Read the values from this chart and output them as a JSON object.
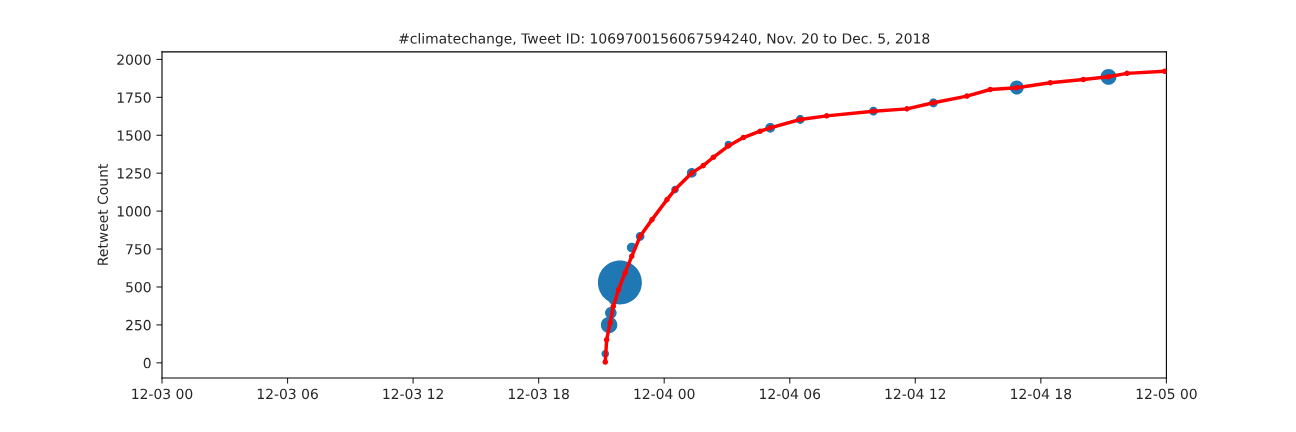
{
  "chart_data": {
    "type": "bubble",
    "title": "#climatechange, Tweet ID: 1069700156067594240, Nov. 20 to Dec. 5, 2018",
    "ylabel": "Retweet Count",
    "xlim": [
      "2018-12-03T00:00",
      "2018-12-05T00:00"
    ],
    "xticks": [
      {
        "value": "2018-12-03T00:00",
        "label": "12-03 00"
      },
      {
        "value": "2018-12-03T06:00",
        "label": "12-03 06"
      },
      {
        "value": "2018-12-03T12:00",
        "label": "12-03 12"
      },
      {
        "value": "2018-12-03T18:00",
        "label": "12-03 18"
      },
      {
        "value": "2018-12-04T00:00",
        "label": "12-04 00"
      },
      {
        "value": "2018-12-04T06:00",
        "label": "12-04 06"
      },
      {
        "value": "2018-12-04T12:00",
        "label": "12-04 12"
      },
      {
        "value": "2018-12-04T18:00",
        "label": "12-04 18"
      },
      {
        "value": "2018-12-05T00:00",
        "label": "12-05 00"
      }
    ],
    "ylim": [
      -100,
      2050
    ],
    "yticks": [
      0,
      250,
      500,
      750,
      1000,
      1250,
      1500,
      1750,
      2000
    ],
    "grid": false,
    "legend": false,
    "series": [
      {
        "color": "#1f77b4",
        "x": [
          "2018-12-03T21:11",
          "2018-12-03T21:22",
          "2018-12-03T21:27",
          "2018-12-03T21:35",
          "2018-12-03T21:53",
          "2018-12-03T22:27",
          "2018-12-03T22:51",
          "2018-12-04T00:31",
          "2018-12-04T01:19",
          "2018-12-04T03:04",
          "2018-12-04T05:04",
          "2018-12-04T06:30",
          "2018-12-04T10:00",
          "2018-12-04T12:52",
          "2018-12-04T16:51",
          "2018-12-04T21:14"
        ],
        "values": [
          60,
          250,
          330,
          420,
          530,
          760,
          834,
          1142,
          1252,
          1439,
          1549,
          1604,
          1659,
          1714,
          1815,
          1885
        ],
        "sizes": [
          0.03,
          0.14,
          0.07,
          0.06,
          1,
          0.05,
          0.04,
          0.03,
          0.05,
          0.03,
          0.05,
          0.04,
          0.04,
          0.04,
          0.1,
          0.13
        ]
      },
      {
        "type": "line",
        "color": "#ff0000",
        "marker": "circle",
        "x": [
          "2018-12-03T21:11",
          "2018-12-03T21:15",
          "2018-12-03T21:25",
          "2018-12-03T21:34",
          "2018-12-03T21:49",
          "2018-12-03T22:08",
          "2018-12-03T22:27",
          "2018-12-03T22:51",
          "2018-12-03T23:25",
          "2018-12-04T00:08",
          "2018-12-04T00:31",
          "2018-12-04T01:19",
          "2018-12-04T01:52",
          "2018-12-04T02:21",
          "2018-12-04T03:04",
          "2018-12-04T03:47",
          "2018-12-04T04:35",
          "2018-12-04T05:04",
          "2018-12-04T06:30",
          "2018-12-04T07:46",
          "2018-12-04T10:00",
          "2018-12-04T11:36",
          "2018-12-04T12:52",
          "2018-12-04T14:28",
          "2018-12-04T15:35",
          "2018-12-04T16:51",
          "2018-12-04T18:27",
          "2018-12-04T20:02",
          "2018-12-04T21:14",
          "2018-12-04T22:07",
          "2018-12-04T23:55"
        ],
        "values": [
          5,
          152,
          264,
          372,
          482,
          594,
          702,
          834,
          944,
          1076,
          1142,
          1252,
          1300,
          1355,
          1430,
          1485,
          1527,
          1549,
          1604,
          1628,
          1659,
          1674,
          1714,
          1758,
          1802,
          1813,
          1846,
          1868,
          1886,
          1908,
          1922
        ]
      }
    ]
  }
}
